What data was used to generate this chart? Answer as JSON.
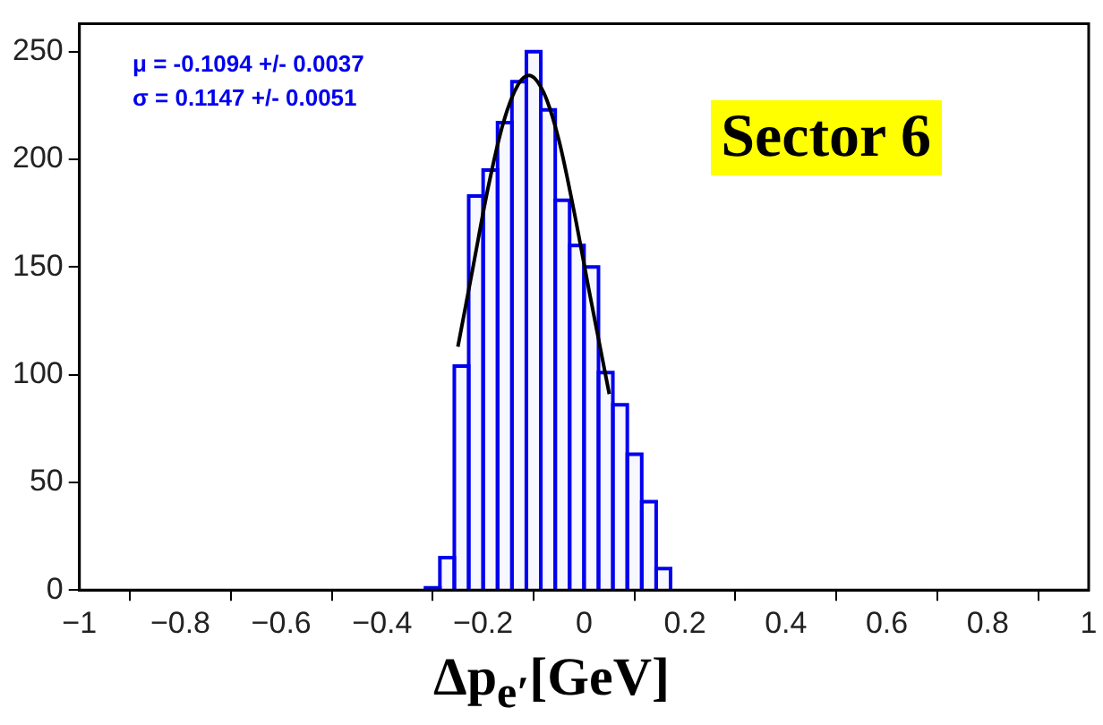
{
  "chart_data": {
    "type": "histogram",
    "title": "Sector 6",
    "xlabel": "Δp$_{e′}$[GeV]",
    "annotations": [
      "μ = -0.1094 +/- 0.0037",
      "σ = 0.1147 +/- 0.0051"
    ],
    "bins": [
      -0.3143,
      -0.2857,
      -0.2571,
      -0.2286,
      -0.2,
      -0.1714,
      -0.1429,
      -0.1143,
      -0.0857,
      -0.0571,
      -0.0286,
      0,
      0.0286,
      0.0571,
      0.0857,
      0.1143,
      0.1429,
      0.1714
    ],
    "values": [
      1,
      15,
      104,
      183,
      195,
      217,
      236,
      250,
      223,
      181,
      160,
      150,
      101,
      86,
      63,
      41,
      10
    ],
    "color": "#0000ee",
    "series": [
      {
        "type": "line",
        "color": "#000000",
        "x": [
          -0.25,
          -0.22,
          -0.19,
          -0.16,
          -0.13,
          -0.1094,
          -0.08,
          -0.05,
          -0.02,
          0.01,
          0.05
        ],
        "values": [
          113,
          150,
          187,
          217,
          235,
          239,
          231,
          209,
          176,
          139,
          91
        ]
      }
    ],
    "xlim": [
      -1,
      1
    ],
    "xticks": [
      -1,
      -0.8,
      -0.6,
      -0.4,
      -0.2,
      0,
      0.2,
      0.4,
      0.6,
      0.8,
      1
    ],
    "ylim": [
      0,
      263
    ],
    "yticks": [
      0,
      50,
      100,
      150,
      200,
      250
    ],
    "grid": false,
    "legend": false,
    "marker": "none",
    "line_style": "solid"
  }
}
